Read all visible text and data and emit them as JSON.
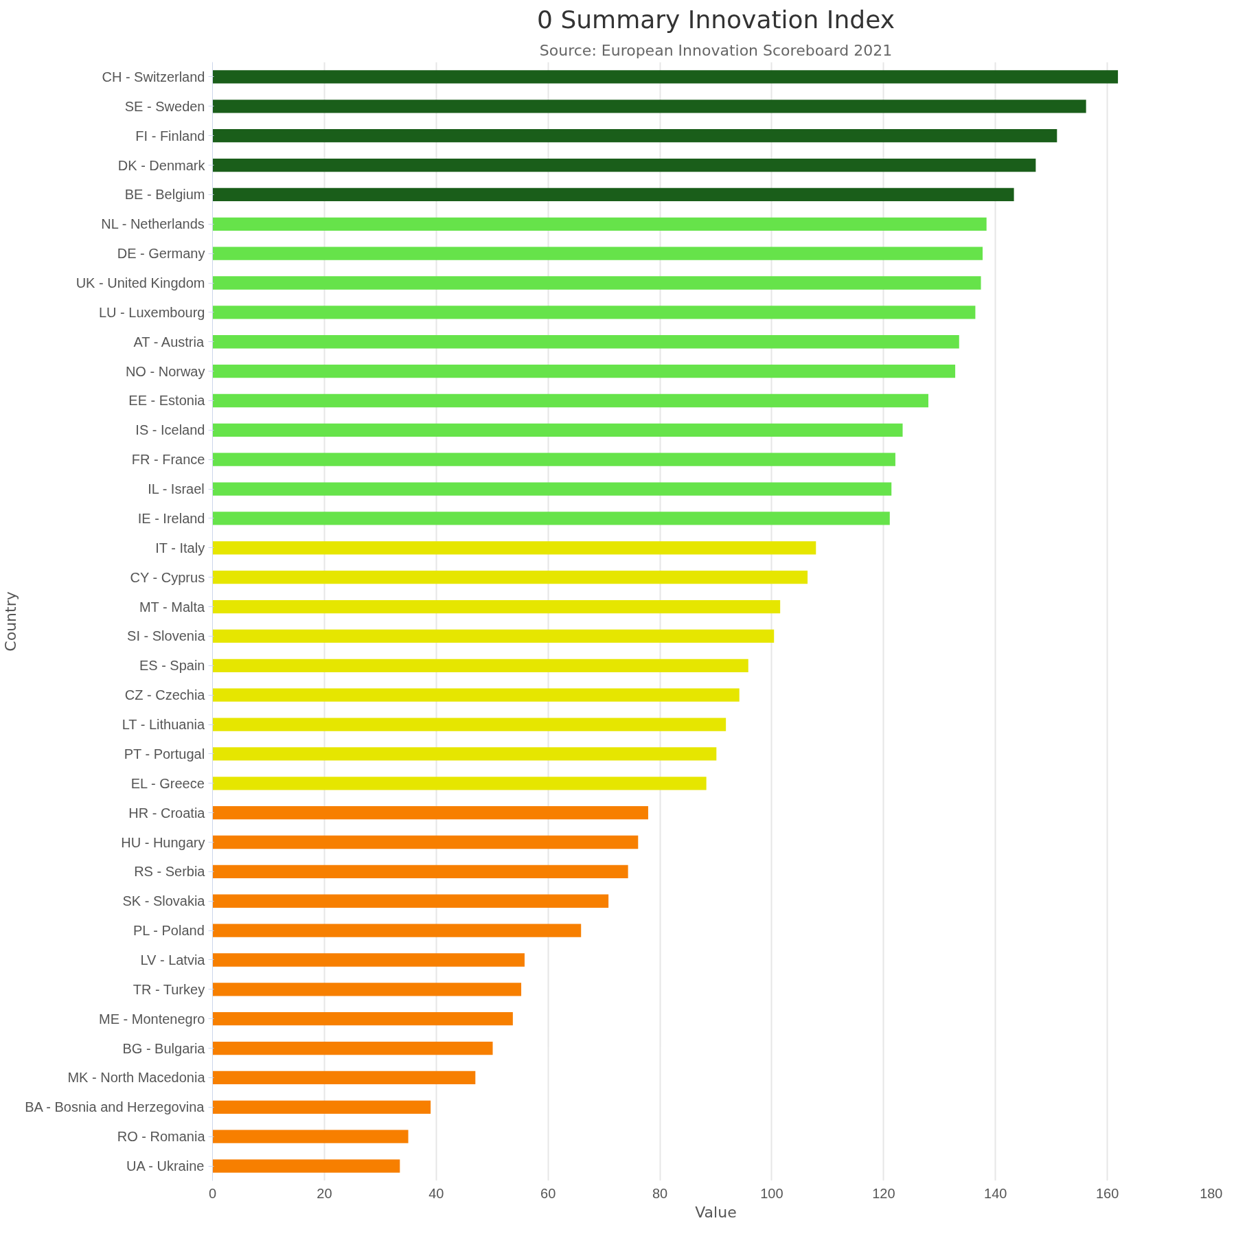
{
  "chart_data": {
    "type": "bar",
    "orientation": "horizontal",
    "title": "0 Summary Innovation Index",
    "subtitle": "Source: European Innovation Scoreboard 2021",
    "xlabel": "Value",
    "ylabel": "Country",
    "categories": [
      "CH - Switzerland",
      "SE - Sweden",
      "FI - Finland",
      "DK - Denmark",
      "BE - Belgium",
      "NL - Netherlands",
      "DE - Germany",
      "UK - United Kingdom",
      "LU - Luxembourg",
      "AT - Austria",
      "NO - Norway",
      "EE - Estonia",
      "IS - Iceland",
      "FR - France",
      "IL - Israel",
      "IE - Ireland",
      "IT - Italy",
      "CY - Cyprus",
      "MT - Malta",
      "SI - Slovenia",
      "ES - Spain",
      "CZ - Czechia",
      "LT - Lithuania",
      "PT - Portugal",
      "EL - Greece",
      "HR - Croatia",
      "HU - Hungary",
      "RS - Serbia",
      "SK - Slovakia",
      "PL - Poland",
      "LV - Latvia",
      "TR - Turkey",
      "ME - Montenegro",
      "BG - Bulgaria",
      "MK - North Macedonia",
      "BA - Bosnia and Herzegovina",
      "RO - Romania",
      "UA - Ukraine"
    ],
    "values": [
      161.9,
      156.2,
      151.0,
      147.2,
      143.3,
      138.4,
      137.7,
      137.4,
      136.4,
      133.5,
      132.8,
      128.0,
      123.4,
      122.1,
      121.4,
      121.1,
      107.9,
      106.4,
      101.5,
      100.4,
      95.8,
      94.2,
      91.8,
      90.1,
      88.3,
      77.9,
      76.1,
      74.3,
      70.8,
      65.9,
      55.8,
      55.2,
      53.7,
      50.1,
      47.0,
      39.0,
      35.0,
      33.5
    ],
    "colors": [
      "#1a5e1a",
      "#1a5e1a",
      "#1a5e1a",
      "#1a5e1a",
      "#1a5e1a",
      "#66e34a",
      "#66e34a",
      "#66e34a",
      "#66e34a",
      "#66e34a",
      "#66e34a",
      "#66e34a",
      "#66e34a",
      "#66e34a",
      "#66e34a",
      "#66e34a",
      "#e6e600",
      "#e6e600",
      "#e6e600",
      "#e6e600",
      "#e6e600",
      "#e6e600",
      "#e6e600",
      "#e6e600",
      "#e6e600",
      "#f77f00",
      "#f77f00",
      "#f77f00",
      "#f77f00",
      "#f77f00",
      "#f77f00",
      "#f77f00",
      "#f77f00",
      "#f77f00",
      "#f77f00",
      "#f77f00",
      "#f77f00",
      "#f77f00"
    ],
    "xlim": [
      0,
      180
    ],
    "xticks": [
      0,
      20,
      40,
      60,
      80,
      100,
      120,
      140,
      160,
      180
    ],
    "grid": "x"
  }
}
